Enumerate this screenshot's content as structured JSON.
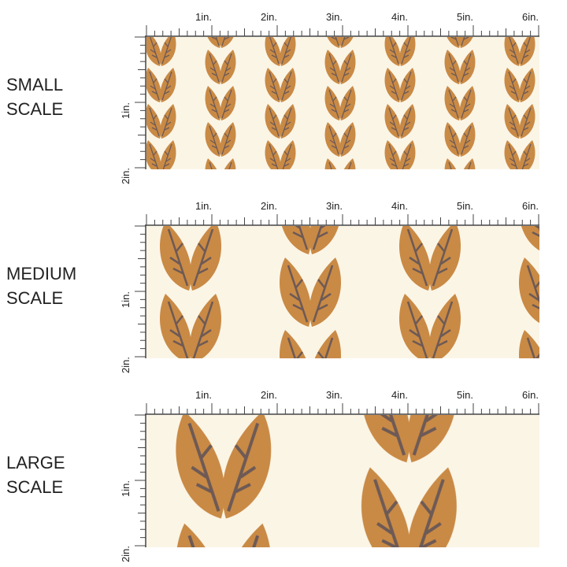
{
  "panels": [
    {
      "label": [
        "SMALL",
        "SCALE"
      ],
      "x_labels": [
        "1in.",
        "2in.",
        "3in.",
        "4in.",
        "5in.",
        "6in."
      ],
      "y_labels": [
        "1in.",
        "2in."
      ]
    },
    {
      "label": [
        "MEDIUM",
        "SCALE"
      ],
      "x_labels": [
        "1in.",
        "2in.",
        "3in.",
        "4in.",
        "5in.",
        "6in."
      ],
      "y_labels": [
        "1in.",
        "2in."
      ]
    },
    {
      "label": [
        "LARGE",
        "SCALE"
      ],
      "x_labels": [
        "1in.",
        "2in.",
        "3in.",
        "4in.",
        "5in.",
        "6in."
      ],
      "y_labels": [
        "1in.",
        "2in."
      ]
    }
  ]
}
